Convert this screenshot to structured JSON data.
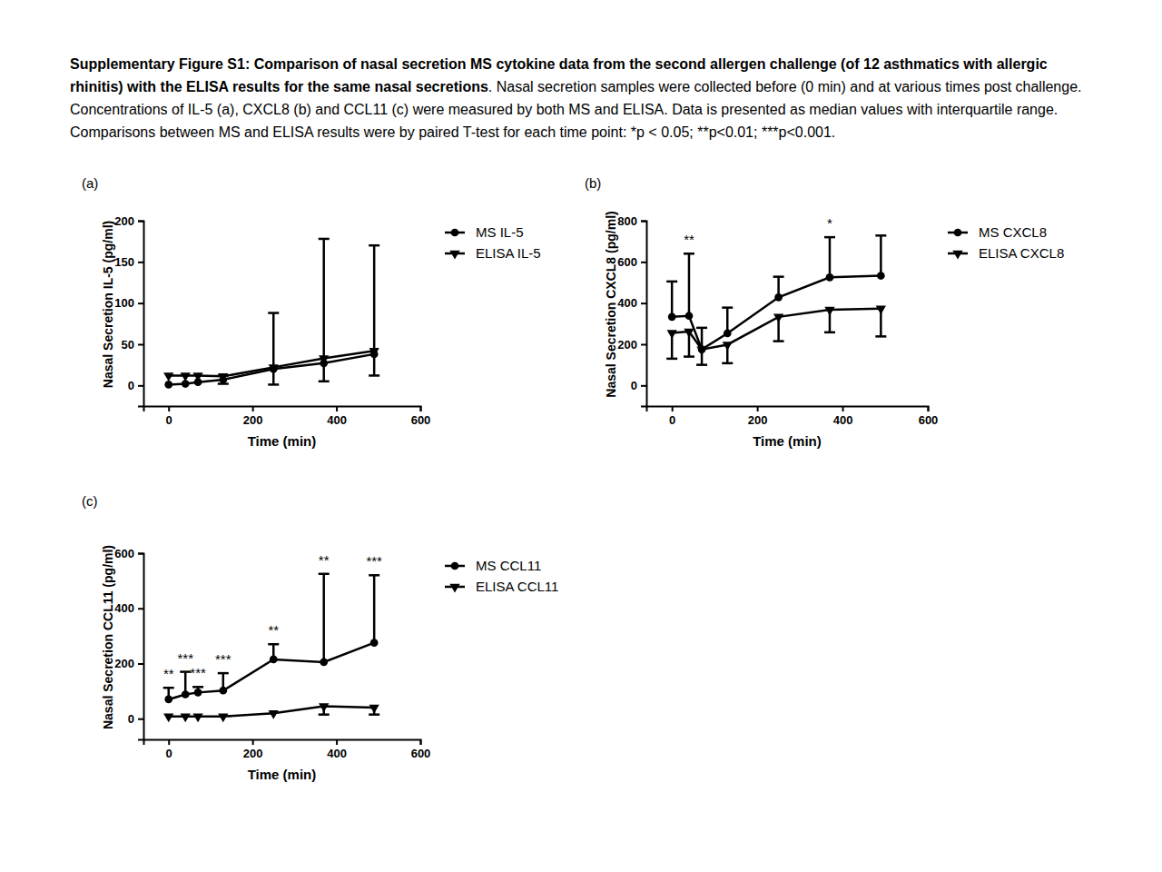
{
  "caption": {
    "bold": "Supplementary Figure S1: Comparison of nasal secretion MS cytokine data from the second allergen challenge (of 12 asthmatics with allergic rhinitis) with the ELISA results for the same nasal secretions",
    "text": ". Nasal secretion samples were collected before (0 min) and at various times post challenge. Concentrations of IL-5 (a), CXCL8 (b) and CCL11 (c) were measured by both MS and ELISA. Data is presented as median values with interquartile range. Comparisons between MS and ELISA results were by paired T-test for each time point: *p < 0.05; **p<0.01; ***p<0.001."
  },
  "chart_data": [
    {
      "type": "line",
      "panel": "(a)",
      "xlabel": "Time (min)",
      "ylabel": "Nasal Secretion IL-5 (pg/ml)",
      "x": [
        0,
        40,
        70,
        130,
        250,
        370,
        490
      ],
      "xlim": [
        -60,
        600
      ],
      "xticks": [
        0,
        200,
        400,
        600
      ],
      "ylim": [
        -25,
        200
      ],
      "yticks": [
        0,
        50,
        100,
        150,
        200
      ],
      "legend": "right",
      "significance": [
        null,
        null,
        null,
        null,
        null,
        null,
        null
      ],
      "series": [
        {
          "name": "MS IL-5",
          "color": "#000000",
          "marker": "circle",
          "values": [
            1,
            2,
            4,
            7,
            20,
            27,
            38
          ],
          "upper": [
            null,
            null,
            null,
            12,
            88,
            178,
            170
          ],
          "lower": [
            null,
            null,
            null,
            null,
            null,
            null,
            null
          ]
        },
        {
          "name": "ELISA IL-5",
          "color": "#000000",
          "marker": "triangle-down",
          "values": [
            12,
            12,
            12,
            11,
            22,
            33,
            42
          ],
          "upper": [
            null,
            null,
            null,
            null,
            null,
            null,
            null
          ],
          "lower": [
            null,
            null,
            null,
            2,
            1,
            5,
            12
          ]
        }
      ]
    },
    {
      "type": "line",
      "panel": "(b)",
      "xlabel": "Time (min)",
      "ylabel": "Nasal Secretion CXCL8 (pg/ml)",
      "x": [
        0,
        40,
        70,
        130,
        250,
        370,
        490
      ],
      "xlim": [
        -60,
        600
      ],
      "xticks": [
        0,
        200,
        400,
        600
      ],
      "ylim": [
        -100,
        800
      ],
      "yticks": [
        0,
        200,
        400,
        600,
        800
      ],
      "legend": "right",
      "significance": [
        null,
        "**",
        null,
        null,
        null,
        "*",
        null
      ],
      "series": [
        {
          "name": "MS CXCL8",
          "color": "#000000",
          "marker": "circle",
          "values": [
            333,
            338,
            175,
            253,
            428,
            525,
            533
          ],
          "upper": [
            505,
            640,
            280,
            378,
            528,
            720,
            728
          ],
          "lower": [
            null,
            null,
            null,
            null,
            null,
            null,
            null
          ]
        },
        {
          "name": "ELISA CXCL8",
          "color": "#000000",
          "marker": "triangle-down",
          "values": [
            255,
            262,
            175,
            198,
            333,
            368,
            373
          ],
          "upper": [
            null,
            null,
            null,
            null,
            null,
            null,
            null
          ],
          "lower": [
            130,
            140,
            100,
            108,
            215,
            258,
            238
          ]
        }
      ]
    },
    {
      "type": "line",
      "panel": "(c)",
      "xlabel": "Time (min)",
      "ylabel": "Nasal Secretion CCL11 (pg/ml)",
      "x": [
        0,
        40,
        70,
        130,
        250,
        370,
        490
      ],
      "xlim": [
        -60,
        600
      ],
      "xticks": [
        0,
        200,
        400,
        600
      ],
      "ylim": [
        -75,
        600
      ],
      "yticks": [
        0,
        200,
        400,
        600
      ],
      "legend": "right",
      "significance": [
        "**",
        "***",
        "***",
        "***",
        "**",
        "**",
        "***"
      ],
      "series": [
        {
          "name": "MS CCL11",
          "color": "#000000",
          "marker": "circle",
          "values": [
            70,
            88,
            95,
            102,
            215,
            205,
            275
          ],
          "upper": [
            112,
            170,
            115,
            165,
            270,
            525,
            520
          ],
          "lower": [
            null,
            null,
            null,
            null,
            null,
            null,
            null
          ]
        },
        {
          "name": "ELISA CCL11",
          "color": "#000000",
          "marker": "triangle-down",
          "values": [
            8,
            8,
            8,
            8,
            20,
            45,
            40
          ],
          "upper": [
            null,
            null,
            null,
            null,
            null,
            null,
            null
          ],
          "lower": [
            null,
            null,
            null,
            null,
            null,
            15,
            15
          ]
        }
      ]
    }
  ]
}
